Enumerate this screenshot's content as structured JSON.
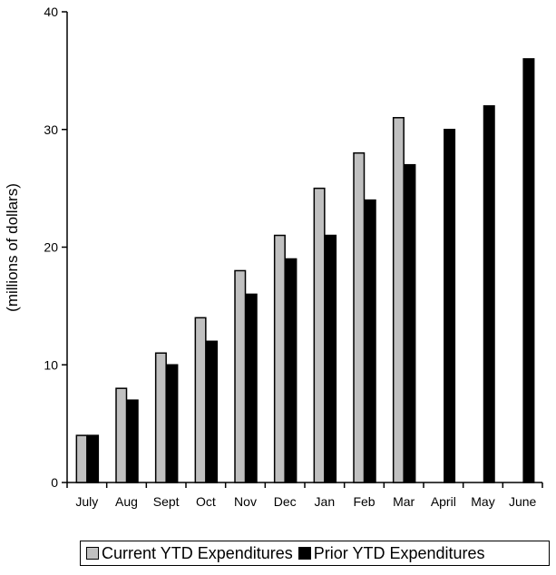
{
  "chart_data": {
    "type": "bar",
    "categories": [
      "July",
      "Aug",
      "Sept",
      "Oct",
      "Nov",
      "Dec",
      "Jan",
      "Feb",
      "Mar",
      "April",
      "May",
      "June"
    ],
    "series": [
      {
        "name": "Current YTD Expenditures",
        "color": "#c0c0c0",
        "values": [
          4,
          8,
          11,
          14,
          18,
          21,
          25,
          28,
          31,
          null,
          null,
          null
        ]
      },
      {
        "name": "Prior YTD Expenditures",
        "color": "#000000",
        "values": [
          4,
          7,
          10,
          12,
          16,
          19,
          21,
          24,
          27,
          30,
          32,
          36
        ]
      }
    ],
    "ylabel": "(millions of dollars)",
    "xlabel": "",
    "ylim": [
      0,
      40
    ],
    "yticks": [
      0,
      10,
      20,
      30,
      40
    ],
    "grid": false,
    "legend_position": "bottom"
  }
}
